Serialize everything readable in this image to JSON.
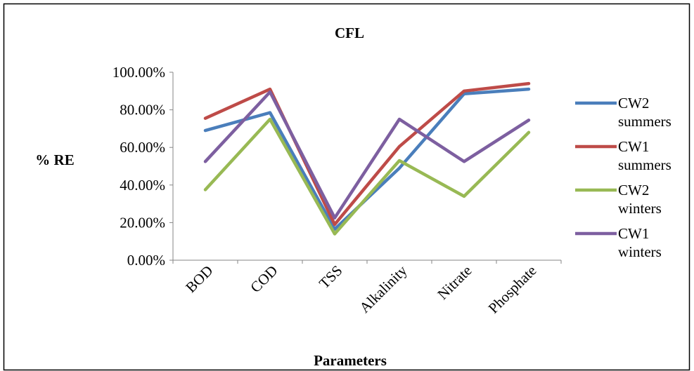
{
  "chart_data": {
    "type": "line",
    "title": "CFL",
    "xlabel": "Parameters",
    "ylabel": "% RE",
    "categories": [
      "BOD",
      "COD",
      "TSS",
      "Alkalinity",
      "Nitrate",
      "Phosphate"
    ],
    "ylim": [
      0,
      1
    ],
    "yticks": [
      0,
      0.2,
      0.4,
      0.6,
      0.8,
      1.0
    ],
    "ytick_labels": [
      "0.00%",
      "20.00%",
      "40.00%",
      "60.00%",
      "80.00%",
      "100.00%"
    ],
    "grid": false,
    "legend_position": "right",
    "series": [
      {
        "name_lines": [
          "CW2",
          "summers"
        ],
        "color": "#4a7ebb",
        "values": [
          0.69,
          0.785,
          0.165,
          0.49,
          0.885,
          0.91
        ]
      },
      {
        "name_lines": [
          "CW1",
          "summers"
        ],
        "color": "#be4b48",
        "values": [
          0.755,
          0.91,
          0.19,
          0.605,
          0.9,
          0.94
        ]
      },
      {
        "name_lines": [
          "CW2",
          "winters"
        ],
        "color": "#98b954",
        "values": [
          0.375,
          0.75,
          0.14,
          0.53,
          0.34,
          0.68
        ]
      },
      {
        "name_lines": [
          "CW1",
          "winters"
        ],
        "color": "#7d5fa0",
        "values": [
          0.525,
          0.895,
          0.225,
          0.75,
          0.525,
          0.745
        ]
      }
    ]
  }
}
